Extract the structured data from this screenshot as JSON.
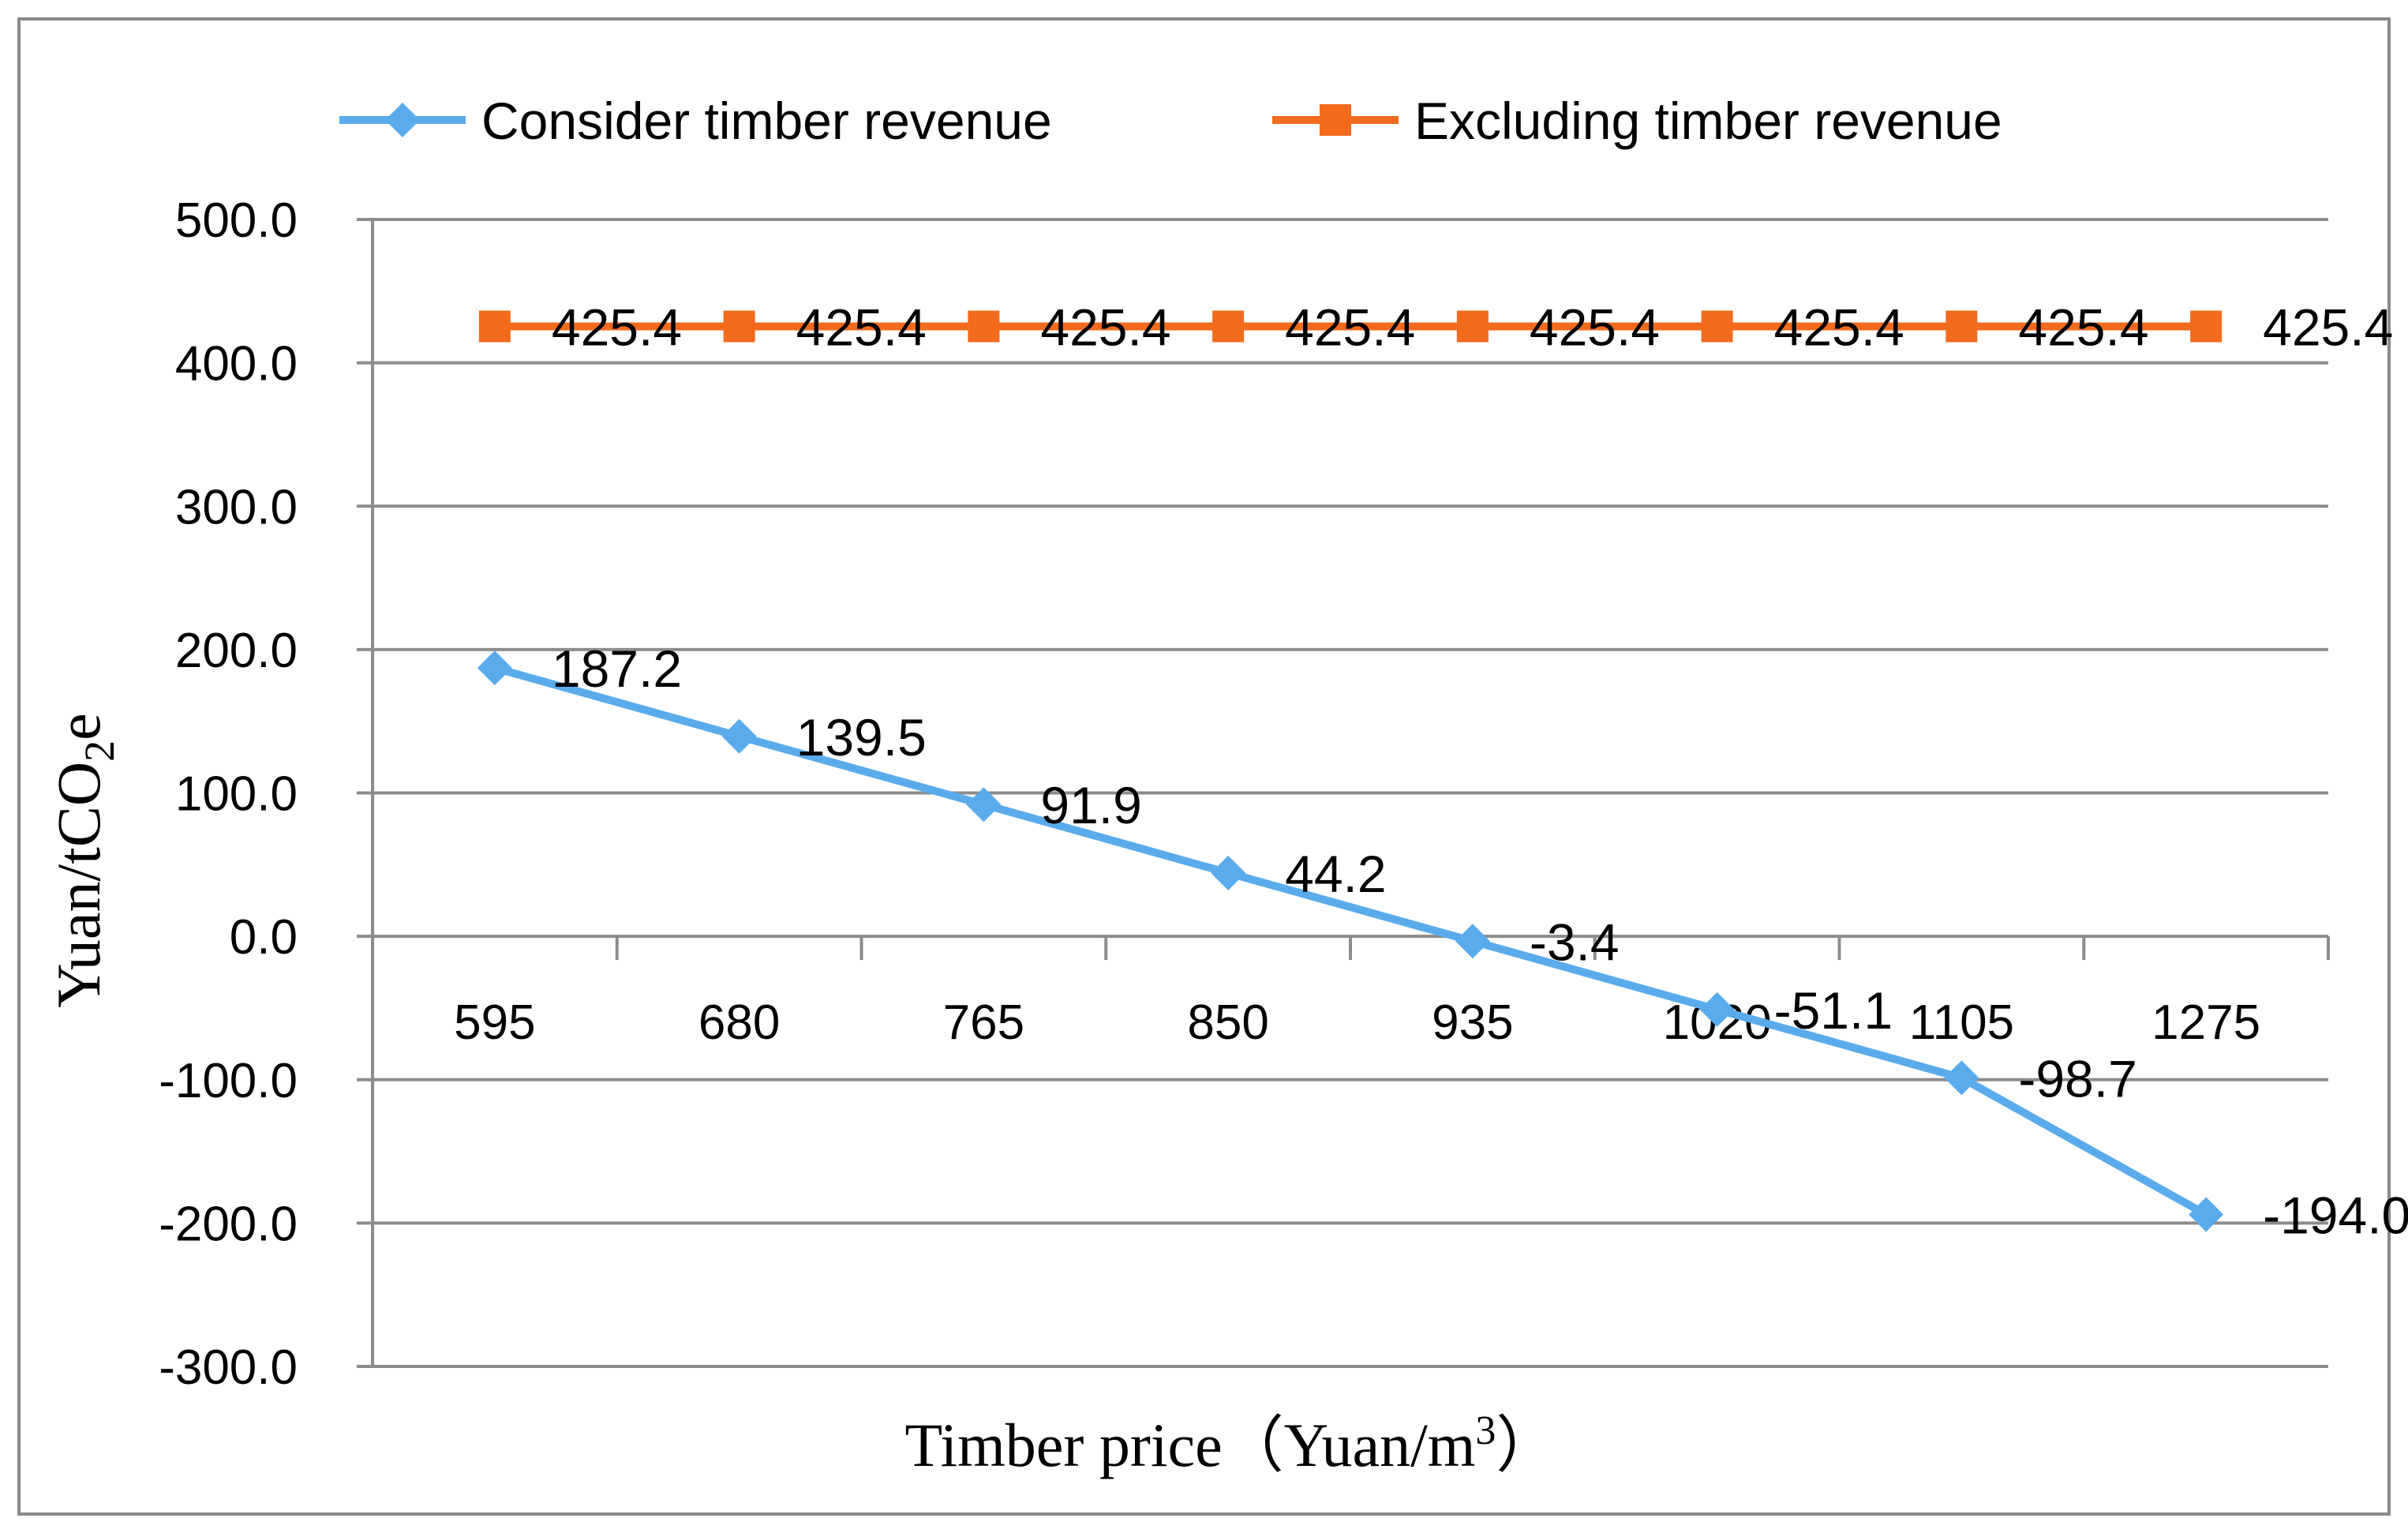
{
  "chart_data": {
    "type": "line",
    "title": "",
    "xlabel": "Timber price（Yuan/m",
    "xlabel_sup": "3",
    "xlabel_end": "）",
    "ylabel": "Yuan/tCO",
    "ylabel_sub": "2",
    "ylabel_end": "e",
    "categories": [
      "595",
      "680",
      "765",
      "850",
      "935",
      "1020",
      "1105",
      "1275"
    ],
    "ylim": [
      -300,
      500
    ],
    "yticks": [
      500,
      400,
      300,
      200,
      100,
      0,
      -100,
      -200,
      -300
    ],
    "ytick_labels": [
      "500.0",
      "400.0",
      "300.0",
      "200.0",
      "100.0",
      "0.0",
      "-100.0",
      "-200.0",
      "-300.0"
    ],
    "grid": true,
    "legend_position": "top",
    "series": [
      {
        "name": "Consider timber revenue",
        "color": "#5aabec",
        "marker": "diamond",
        "values": [
          187.2,
          139.5,
          91.9,
          44.2,
          -3.4,
          -51.1,
          -98.7,
          -194.0
        ],
        "labels": [
          "187.2",
          "139.5",
          "91.9",
          "44.2",
          "-3.4",
          "-51.1",
          "-98.7",
          "-194.0"
        ]
      },
      {
        "name": "Excluding timber revenue",
        "color": "#f26b1d",
        "marker": "square",
        "values": [
          425.4,
          425.4,
          425.4,
          425.4,
          425.4,
          425.4,
          425.4,
          425.4
        ],
        "labels": [
          "425.4",
          "425.4",
          "425.4",
          "425.4",
          "425.4",
          "425.4",
          "425.4",
          "425.4"
        ]
      }
    ]
  }
}
